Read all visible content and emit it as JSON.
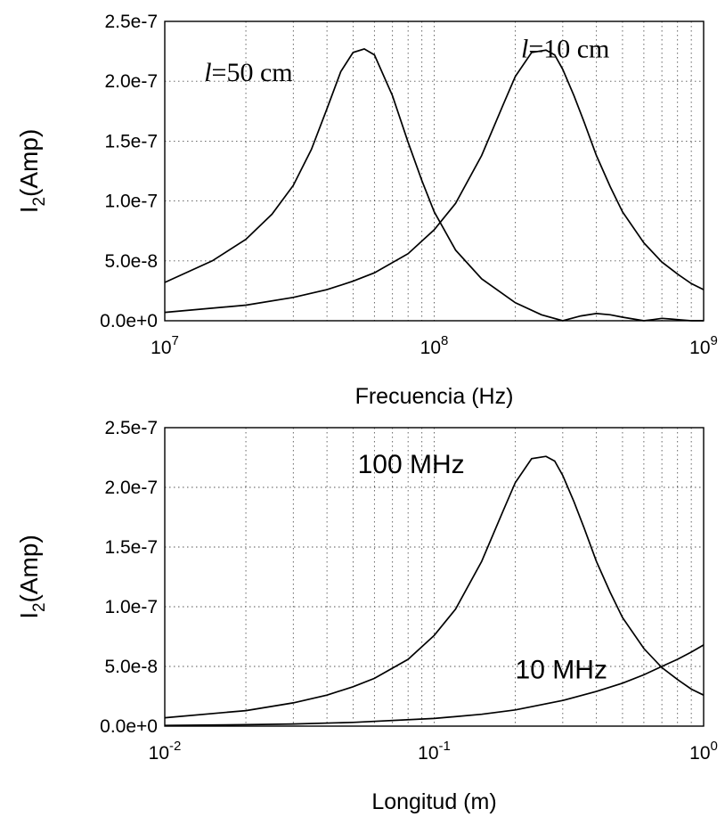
{
  "chart_data": [
    {
      "type": "line",
      "xlabel": "Frecuencia (Hz)",
      "ylabel": {
        "main": "I",
        "sub": "2",
        "rest": "(Amp)"
      },
      "xscale": "log",
      "xlim": [
        10000000,
        1000000000
      ],
      "ylim": [
        0,
        2.5e-07
      ],
      "grid": true,
      "x_ticks": [
        {
          "base": "10",
          "exp": "7",
          "value": 10000000
        },
        {
          "base": "10",
          "exp": "8",
          "value": 100000000
        },
        {
          "base": "10",
          "exp": "9",
          "value": 1000000000
        }
      ],
      "y_ticks": [
        {
          "label": "0.0e+0",
          "value": 0
        },
        {
          "label": "5.0e-8",
          "value": 5e-08
        },
        {
          "label": "1.0e-7",
          "value": 1e-07
        },
        {
          "label": "1.5e-7",
          "value": 1.5e-07
        },
        {
          "label": "2.0e-7",
          "value": 2e-07
        },
        {
          "label": "2.5e-7",
          "value": 2.5e-07
        }
      ],
      "annotations": [
        {
          "italic": "l",
          "text": "=50 cm",
          "font": "serif",
          "x": 14000000,
          "y": 2e-07
        },
        {
          "italic": "l",
          "text": "=10 cm",
          "font": "serif",
          "x": 210000000,
          "y": 2.2e-07
        }
      ],
      "series": [
        {
          "x": [
            10000000,
            15000000,
            20000000,
            25000000,
            30000000,
            35000000,
            40000000,
            45000000,
            50000000,
            55000000,
            60000000,
            70000000,
            80000000,
            90000000,
            100000000,
            120000000,
            150000000,
            200000000,
            250000000,
            300000000,
            350000000,
            400000000,
            450000000,
            500000000,
            600000000,
            650000000,
            700000000,
            750000000,
            800000000,
            900000000,
            1000000000
          ],
          "y": [
            3.2e-08,
            5e-08,
            6.8e-08,
            8.9e-08,
            1.13e-07,
            1.43e-07,
            1.77e-07,
            2.08e-07,
            2.24e-07,
            2.27e-07,
            2.22e-07,
            1.88e-07,
            1.49e-07,
            1.17e-07,
            9.1e-08,
            5.9e-08,
            3.5e-08,
            1.5e-08,
            5e-09,
            0,
            4e-09,
            6e-09,
            5e-09,
            3e-09,
            0,
            1e-09,
            2e-09,
            1.5e-09,
            1e-09,
            0,
            0
          ]
        },
        {
          "x": [
            10000000,
            20000000,
            30000000,
            40000000,
            50000000,
            60000000,
            80000000,
            100000000,
            120000000,
            150000000,
            180000000,
            200000000,
            230000000,
            260000000,
            280000000,
            300000000,
            330000000,
            360000000,
            400000000,
            450000000,
            500000000,
            600000000,
            700000000,
            800000000,
            900000000,
            1000000000
          ],
          "y": [
            7e-09,
            1.3e-08,
            1.95e-08,
            2.6e-08,
            3.3e-08,
            4e-08,
            5.6e-08,
            7.6e-08,
            9.8e-08,
            1.38e-07,
            1.8e-07,
            2.04e-07,
            2.24e-07,
            2.26e-07,
            2.22e-07,
            2.1e-07,
            1.88e-07,
            1.66e-07,
            1.38e-07,
            1.12e-07,
            9.1e-08,
            6.5e-08,
            4.9e-08,
            3.9e-08,
            3.1e-08,
            2.6e-08
          ]
        }
      ]
    },
    {
      "type": "line",
      "xlabel": "Longitud (m)",
      "ylabel": {
        "main": "I",
        "sub": "2",
        "rest": "(Amp)"
      },
      "xscale": "log",
      "xlim": [
        0.01,
        1
      ],
      "ylim": [
        0,
        2.5e-07
      ],
      "grid": true,
      "x_ticks": [
        {
          "base": "10",
          "exp": "-2",
          "value": 0.01
        },
        {
          "base": "10",
          "exp": "-1",
          "value": 0.1
        },
        {
          "base": "10",
          "exp": "0",
          "value": 1
        }
      ],
      "y_ticks": [
        {
          "label": "0.0e+0",
          "value": 0
        },
        {
          "label": "5.0e-8",
          "value": 5e-08
        },
        {
          "label": "1.0e-7",
          "value": 1e-07
        },
        {
          "label": "1.5e-7",
          "value": 1.5e-07
        },
        {
          "label": "2.0e-7",
          "value": 2e-07
        },
        {
          "label": "2.5e-7",
          "value": 2.5e-07
        }
      ],
      "annotations": [
        {
          "italic": "",
          "text": "100 MHz",
          "font": "sans",
          "x": 0.052,
          "y": 2.12e-07
        },
        {
          "italic": "",
          "text": "10 MHz",
          "font": "sans",
          "x": 0.2,
          "y": 4e-08
        }
      ],
      "series": [
        {
          "name": "100 MHz",
          "x": [
            0.01,
            0.02,
            0.03,
            0.04,
            0.05,
            0.06,
            0.08,
            0.1,
            0.12,
            0.15,
            0.18,
            0.2,
            0.23,
            0.26,
            0.28,
            0.3,
            0.33,
            0.36,
            0.4,
            0.45,
            0.5,
            0.6,
            0.7,
            0.8,
            0.9,
            1.0
          ],
          "y": [
            7e-09,
            1.3e-08,
            1.95e-08,
            2.6e-08,
            3.3e-08,
            4e-08,
            5.6e-08,
            7.6e-08,
            9.8e-08,
            1.38e-07,
            1.8e-07,
            2.04e-07,
            2.24e-07,
            2.26e-07,
            2.22e-07,
            2.1e-07,
            1.88e-07,
            1.66e-07,
            1.38e-07,
            1.12e-07,
            9.1e-08,
            6.5e-08,
            4.9e-08,
            3.9e-08,
            3.1e-08,
            2.6e-08
          ]
        },
        {
          "name": "10 MHz",
          "x": [
            0.01,
            0.02,
            0.03,
            0.05,
            0.1,
            0.15,
            0.2,
            0.3,
            0.4,
            0.5,
            0.6,
            0.7,
            0.8,
            0.9,
            1.0
          ],
          "y": [
            6e-10,
            1.2e-09,
            1.8e-09,
            3.1e-09,
            6.4e-09,
            9.9e-09,
            1.36e-08,
            2.15e-08,
            2.9e-08,
            3.6e-08,
            4.3e-08,
            5e-08,
            5.6e-08,
            6.2e-08,
            6.8e-08
          ]
        }
      ]
    }
  ]
}
